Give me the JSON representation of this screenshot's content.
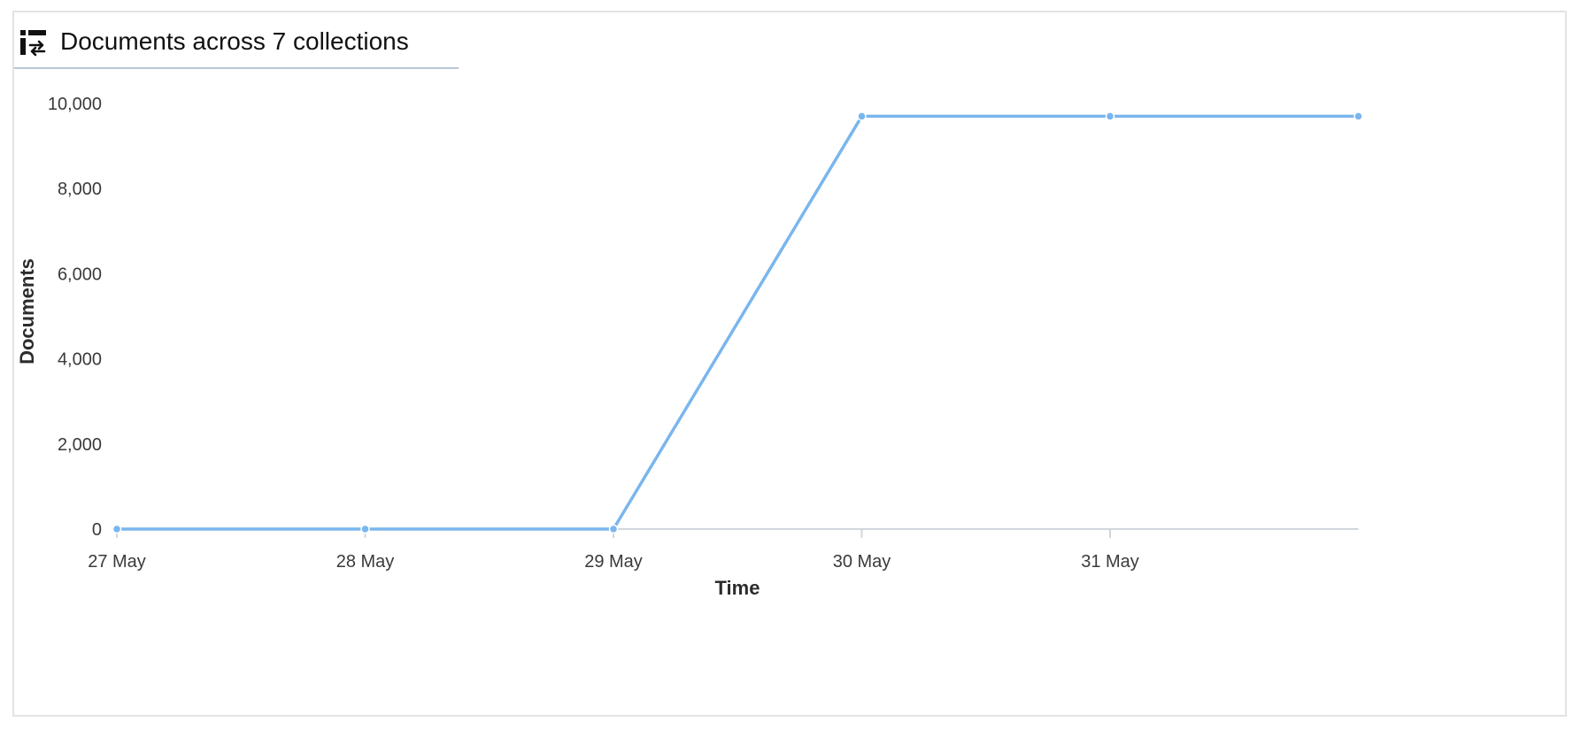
{
  "panel": {
    "title": "Documents across 7 collections",
    "icon": "collection-sync-icon"
  },
  "colors": {
    "line": "#7ab6ee",
    "axis": "#d0d6dc",
    "text": "#3a3a3a"
  },
  "chart_data": {
    "type": "line",
    "title": "Documents across 7 collections",
    "xlabel": "Time",
    "ylabel": "Documents",
    "x_tick_labels": [
      "27 May",
      "28 May",
      "29 May",
      "30 May",
      "31 May"
    ],
    "y_tick_labels": [
      "0",
      "2,000",
      "4,000",
      "6,000",
      "8,000",
      "10,000"
    ],
    "ylim": [
      0,
      10000
    ],
    "grid": false,
    "series": [
      {
        "x": [
          "2024-05-27",
          "2024-05-28",
          "2024-05-29",
          "2024-05-30",
          "2024-05-31",
          "2024-06-01"
        ],
        "y": [
          0,
          0,
          0,
          9700,
          9700,
          9700
        ]
      }
    ]
  }
}
